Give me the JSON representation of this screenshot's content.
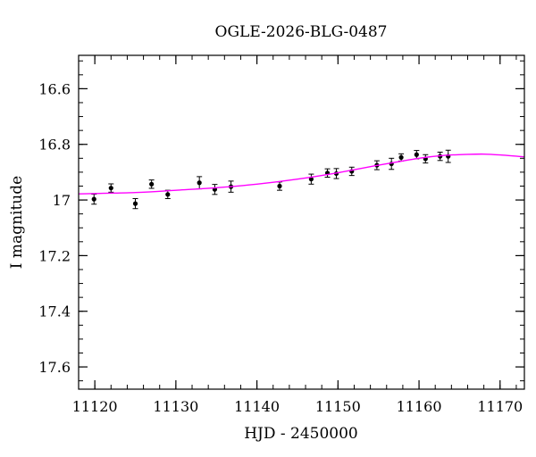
{
  "chart_data": {
    "type": "scatter",
    "title": "OGLE-2026-BLG-0487",
    "xlabel": "HJD - 2450000",
    "ylabel": "I magnitude",
    "xlim": [
      11118,
      11173
    ],
    "ylim": [
      17.68,
      16.48
    ],
    "y_inverted": true,
    "grid": false,
    "x_major_ticks": [
      11120,
      11130,
      11140,
      11150,
      11160,
      11170
    ],
    "x_major_tick_labels": [
      "11120",
      "11130",
      "11140",
      "11150",
      "11160",
      "11170"
    ],
    "x_minor_step": 2,
    "y_major_ticks": [
      16.6,
      16.8,
      17.0,
      17.2,
      17.4,
      17.6
    ],
    "y_major_tick_labels": [
      "16.6",
      "16.8",
      "17",
      "17.2",
      "17.4",
      "17.6"
    ],
    "y_minor_step": 0.05,
    "series": [
      {
        "kind": "points",
        "color": "#000000",
        "x": [
          11119.9,
          11122.0,
          11125.0,
          11127.0,
          11129.0,
          11132.9,
          11134.8,
          11136.8,
          11142.8,
          11146.7,
          11148.7,
          11149.8,
          11151.7,
          11154.8,
          11156.6,
          11157.8,
          11159.7,
          11160.8,
          11162.6,
          11163.6
        ],
        "y": [
          16.997,
          16.957,
          17.013,
          16.943,
          16.98,
          16.938,
          16.962,
          16.952,
          16.95,
          16.925,
          16.903,
          16.905,
          16.897,
          16.875,
          16.87,
          16.847,
          16.837,
          16.852,
          16.843,
          16.843
        ],
        "err": [
          0.018,
          0.015,
          0.018,
          0.015,
          0.015,
          0.022,
          0.018,
          0.02,
          0.015,
          0.018,
          0.015,
          0.018,
          0.015,
          0.016,
          0.02,
          0.013,
          0.015,
          0.015,
          0.015,
          0.022
        ]
      },
      {
        "kind": "model",
        "color": "#ff00ff",
        "x": [
          11118,
          11125,
          11130,
          11135,
          11140,
          11145,
          11150,
          11155,
          11160,
          11163,
          11166,
          11168,
          11170,
          11173
        ],
        "y": [
          16.978,
          16.973,
          16.965,
          16.956,
          16.943,
          16.925,
          16.902,
          16.875,
          16.85,
          16.84,
          16.836,
          16.835,
          16.838,
          16.845
        ]
      }
    ]
  }
}
